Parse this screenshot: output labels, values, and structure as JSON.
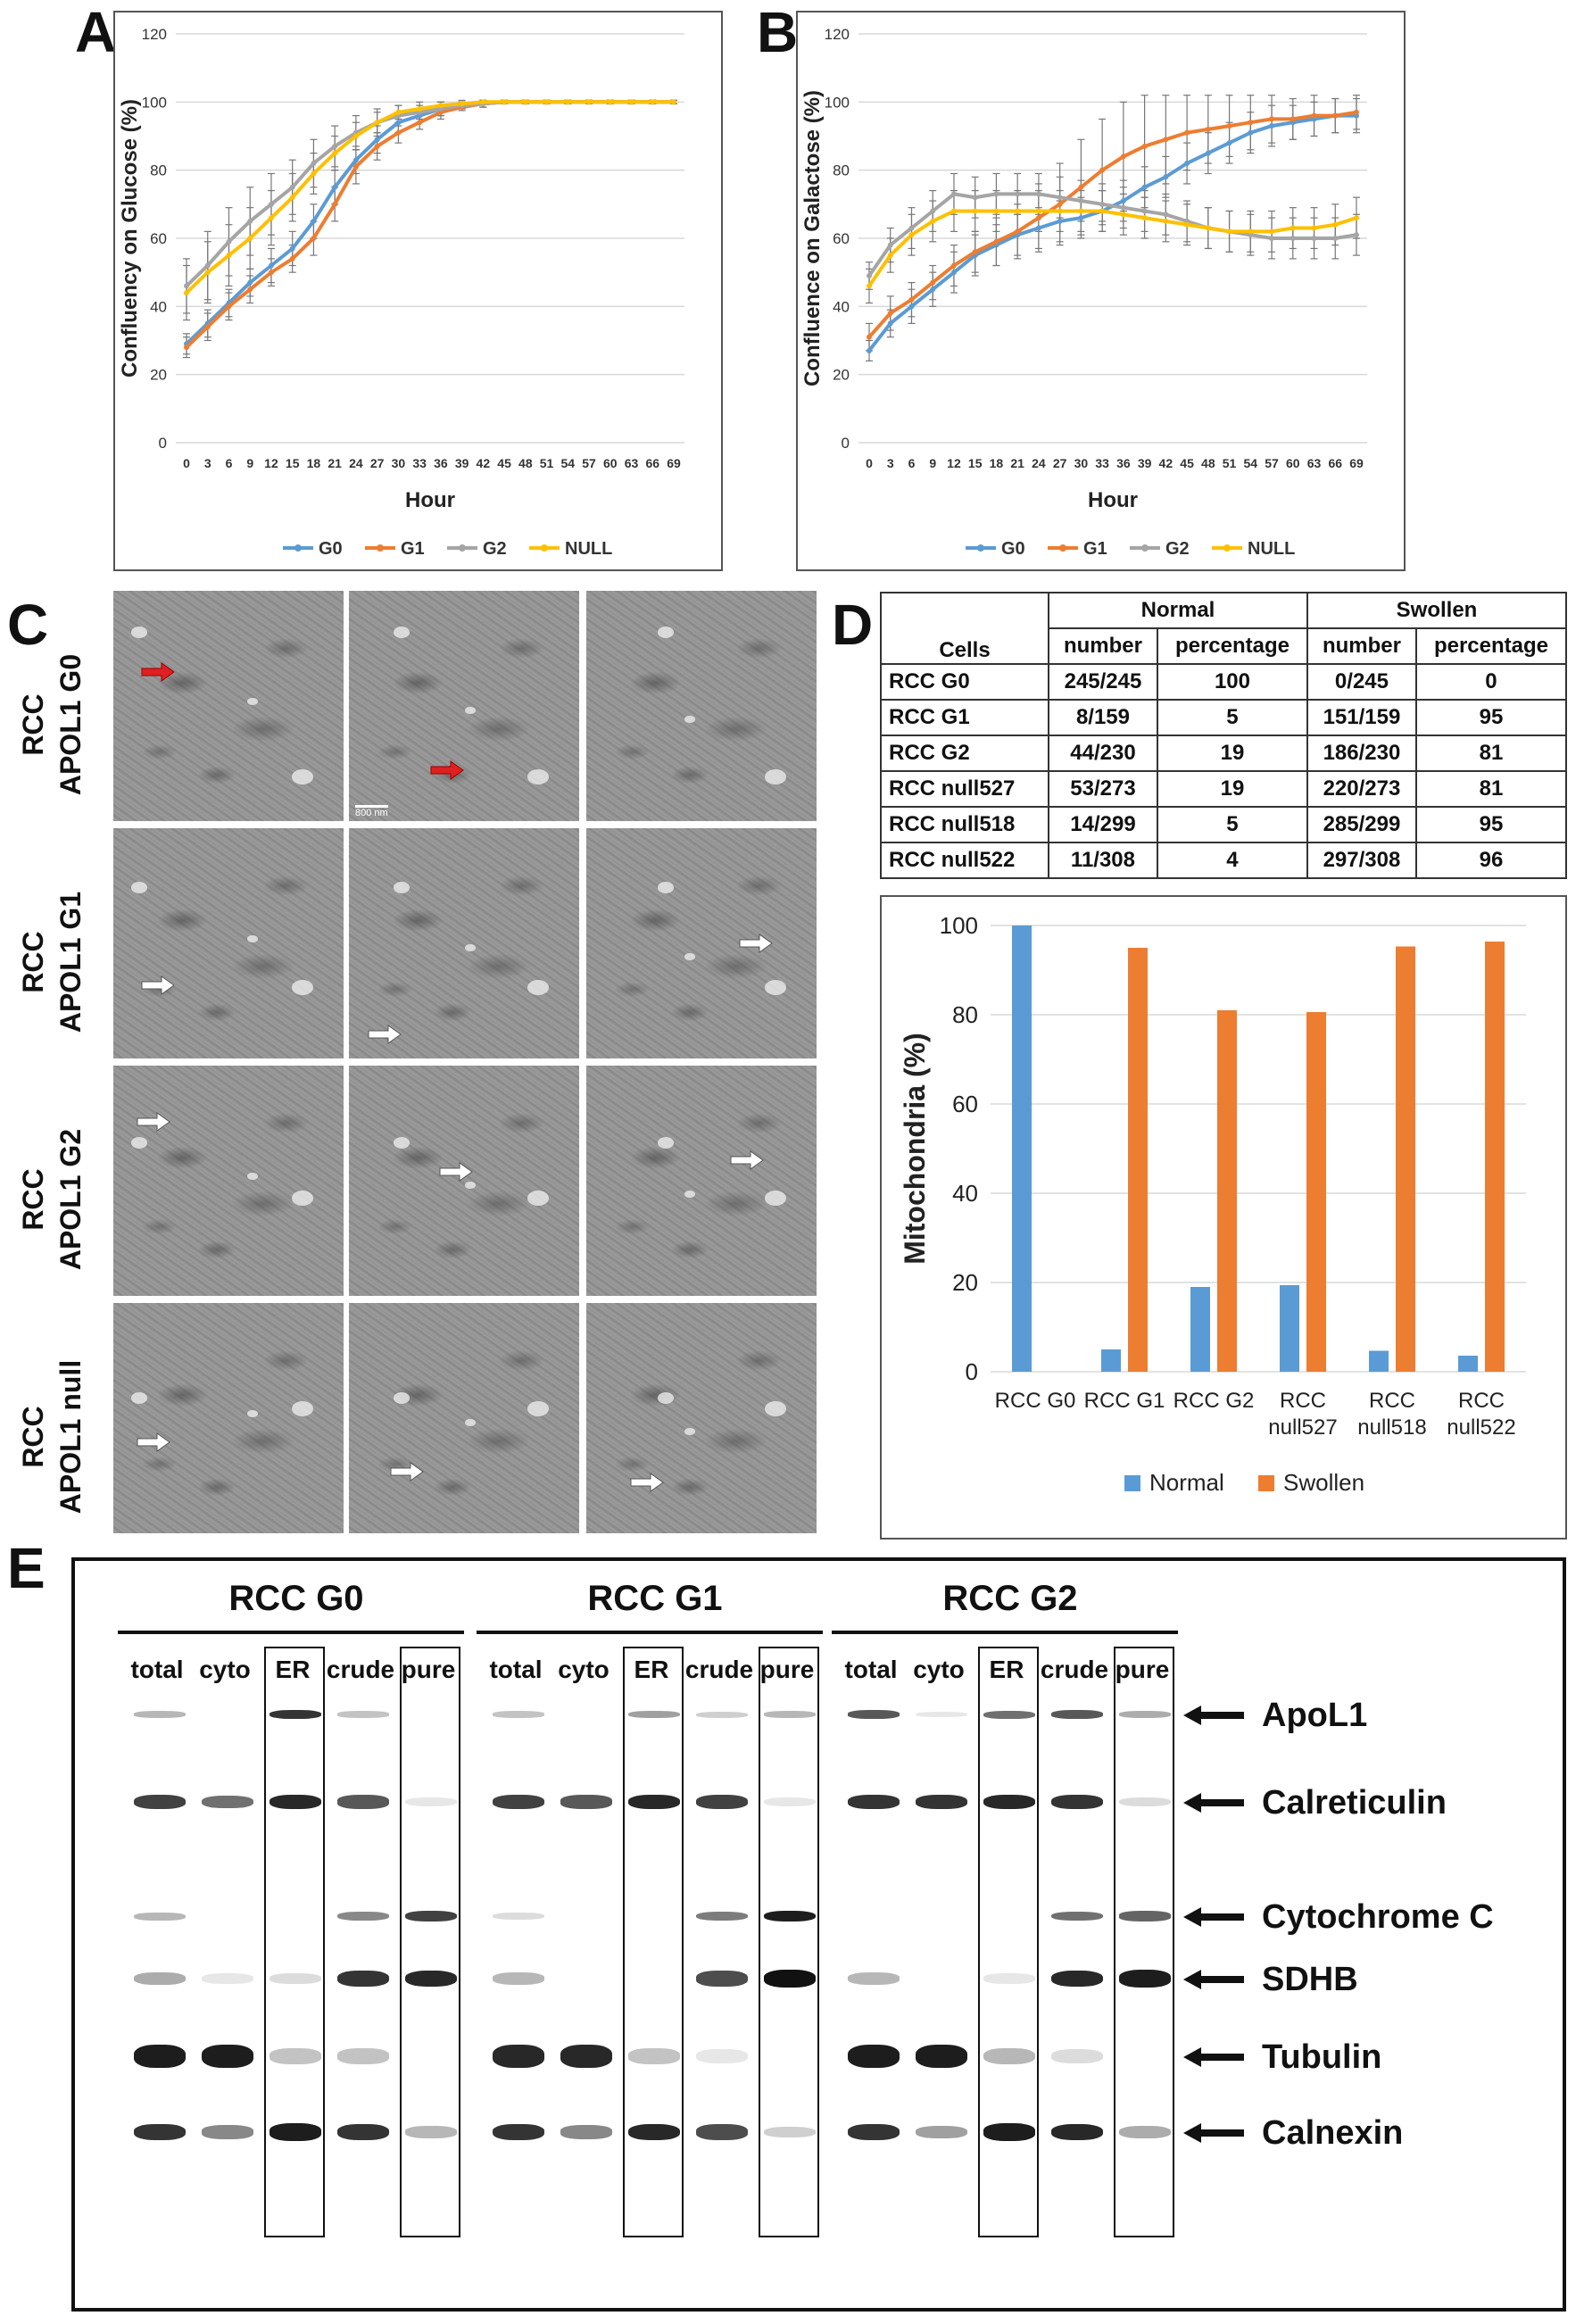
{
  "panels": {
    "a": "A",
    "b": "B",
    "c": "C",
    "d": "D",
    "e": "E"
  },
  "chart_data": [
    {
      "id": "A",
      "type": "line",
      "ylabel": "Confluency on Glucose (%)",
      "xlabel": "Hour",
      "ylim": [
        0,
        120
      ],
      "yticks": [
        0,
        20,
        40,
        60,
        80,
        100,
        120
      ],
      "x": [
        0,
        3,
        6,
        9,
        12,
        15,
        18,
        21,
        24,
        27,
        30,
        33,
        36,
        39,
        42,
        45,
        48,
        51,
        54,
        57,
        60,
        63,
        66,
        69
      ],
      "series": [
        {
          "name": "G0",
          "color": "#5b9bd5",
          "values": [
            29,
            35,
            41,
            47,
            52,
            57,
            65,
            75,
            83,
            89,
            94,
            96,
            98,
            99,
            99.5,
            100,
            100,
            100,
            100,
            100,
            100,
            100,
            100,
            100
          ],
          "err": [
            3,
            4,
            4,
            4,
            5,
            5,
            5,
            5,
            4,
            4,
            3,
            2,
            2,
            1,
            1,
            0.5,
            0.5,
            0.5,
            0.5,
            0.5,
            0.5,
            0.5,
            0.5,
            0.5
          ]
        },
        {
          "name": "G1",
          "color": "#ed7d31",
          "values": [
            28,
            34,
            40,
            45,
            50,
            54,
            60,
            70,
            81,
            87,
            91,
            94,
            97,
            98.5,
            99.5,
            100,
            100,
            100,
            100,
            100,
            100,
            100,
            100,
            100
          ],
          "err": [
            3,
            4,
            4,
            4,
            4,
            4,
            5,
            5,
            5,
            4,
            3,
            2,
            2,
            1,
            1,
            0.5,
            0.5,
            0.5,
            0.5,
            0.5,
            0.5,
            0.5,
            0.5,
            0.5
          ]
        },
        {
          "name": "G2",
          "color": "#a5a5a5",
          "values": [
            46,
            52,
            59,
            65,
            70,
            75,
            82,
            87,
            91,
            94,
            96,
            97,
            98,
            99,
            99.5,
            100,
            100,
            100,
            100,
            100,
            100,
            100,
            100,
            100
          ],
          "err": [
            8,
            10,
            10,
            10,
            9,
            8,
            7,
            6,
            5,
            4,
            3,
            2,
            2,
            1,
            1,
            0.5,
            0.5,
            0.5,
            0.5,
            0.5,
            0.5,
            0.5,
            0.5,
            0.5
          ]
        },
        {
          "name": "NULL",
          "color": "#ffc000",
          "values": [
            44,
            50,
            55,
            60,
            66,
            72,
            79,
            85,
            90,
            94,
            97,
            98,
            99,
            99.5,
            100,
            100,
            100,
            100,
            100,
            100,
            100,
            100,
            100,
            100
          ],
          "err": [
            8,
            9,
            9,
            9,
            8,
            7,
            6,
            5,
            4,
            3,
            2,
            2,
            1,
            1,
            0.5,
            0.5,
            0.5,
            0.5,
            0.5,
            0.5,
            0.5,
            0.5,
            0.5,
            0.5
          ]
        }
      ]
    },
    {
      "id": "B",
      "type": "line",
      "ylabel": "Confluence on Galactose (%)",
      "xlabel": "Hour",
      "ylim": [
        0,
        120
      ],
      "yticks": [
        0,
        20,
        40,
        60,
        80,
        100,
        120
      ],
      "x": [
        0,
        3,
        6,
        9,
        12,
        15,
        18,
        21,
        24,
        27,
        30,
        33,
        36,
        39,
        42,
        45,
        48,
        51,
        54,
        57,
        60,
        63,
        66,
        69
      ],
      "series": [
        {
          "name": "G0",
          "color": "#5b9bd5",
          "values": [
            27,
            35,
            40,
            45,
            50,
            55,
            58,
            61,
            63,
            65,
            66,
            68,
            71,
            75,
            78,
            82,
            85,
            88,
            91,
            93,
            94,
            95,
            96,
            96
          ],
          "err": [
            3,
            4,
            5,
            5,
            6,
            6,
            6,
            6,
            6,
            6,
            6,
            6,
            6,
            6,
            6,
            6,
            6,
            6,
            6,
            6,
            5,
            5,
            5,
            5
          ]
        },
        {
          "name": "G1",
          "color": "#ed7d31",
          "values": [
            31,
            38,
            42,
            47,
            52,
            56,
            59,
            62,
            66,
            70,
            75,
            80,
            84,
            87,
            89,
            91,
            92,
            93,
            94,
            95,
            95,
            96,
            96,
            97
          ],
          "err": [
            4,
            5,
            5,
            5,
            6,
            6,
            7,
            8,
            10,
            12,
            14,
            15,
            16,
            15,
            13,
            11,
            10,
            9,
            8,
            7,
            6,
            6,
            5,
            5
          ]
        },
        {
          "name": "G2",
          "color": "#a5a5a5",
          "values": [
            49,
            58,
            63,
            68,
            73,
            72,
            73,
            73,
            73,
            72,
            71,
            70,
            69,
            68,
            67,
            65,
            63,
            62,
            61,
            60,
            60,
            60,
            60,
            61
          ],
          "err": [
            4,
            5,
            6,
            6,
            6,
            6,
            6,
            6,
            6,
            6,
            6,
            6,
            6,
            6,
            6,
            6,
            6,
            6,
            6,
            6,
            6,
            6,
            6,
            6
          ]
        },
        {
          "name": "NULL",
          "color": "#ffc000",
          "values": [
            46,
            55,
            61,
            65,
            68,
            68,
            68,
            68,
            68,
            68,
            68,
            68,
            67,
            66,
            65,
            64,
            63,
            62,
            62,
            62,
            63,
            63,
            64,
            66
          ],
          "err": [
            5,
            5,
            6,
            6,
            6,
            6,
            6,
            6,
            6,
            6,
            6,
            6,
            6,
            6,
            6,
            6,
            6,
            6,
            6,
            6,
            6,
            6,
            6,
            6
          ]
        }
      ]
    },
    {
      "id": "D",
      "type": "bar",
      "ylabel": "Mitochondria (%)",
      "ylim": [
        0,
        100
      ],
      "yticks": [
        0,
        20,
        40,
        60,
        80,
        100
      ],
      "categories": [
        "RCC G0",
        "RCC G1",
        "RCC G2",
        "RCC null527",
        "RCC null518",
        "RCC null522"
      ],
      "category_lines": [
        [
          "RCC G0"
        ],
        [
          "RCC G1"
        ],
        [
          "RCC G2"
        ],
        [
          "RCC",
          "null527"
        ],
        [
          "RCC",
          "null518"
        ],
        [
          "RCC",
          "null522"
        ]
      ],
      "series": [
        {
          "name": "Normal",
          "color": "#5b9bd5",
          "values": [
            100,
            5,
            19,
            19.4,
            4.7,
            3.6
          ]
        },
        {
          "name": "Swollen",
          "color": "#ed7d31",
          "values": [
            0,
            95,
            81,
            80.6,
            95.3,
            96.4
          ]
        }
      ]
    },
    {
      "id": "D-table",
      "type": "table",
      "headers": {
        "cells": "Cells",
        "normal": "Normal",
        "swollen": "Swollen",
        "number": "number",
        "percentage": "percentage"
      },
      "rows": [
        {
          "cells": "RCC G0",
          "normal_number": "245/245",
          "normal_pct": "100",
          "swollen_number": "0/245",
          "swollen_pct": "0"
        },
        {
          "cells": "RCC G1",
          "normal_number": "8/159",
          "normal_pct": "5",
          "swollen_number": "151/159",
          "swollen_pct": "95"
        },
        {
          "cells": "RCC G2",
          "normal_number": "44/230",
          "normal_pct": "19",
          "swollen_number": "186/230",
          "swollen_pct": "81"
        },
        {
          "cells": "RCC null527",
          "normal_number": "53/273",
          "normal_pct": "19",
          "swollen_number": "220/273",
          "swollen_pct": "81"
        },
        {
          "cells": "RCC null518",
          "normal_number": "14/299",
          "normal_pct": "5",
          "swollen_number": "285/299",
          "swollen_pct": "95"
        },
        {
          "cells": "RCC null522",
          "normal_number": "11/308",
          "normal_pct": "4",
          "swollen_number": "297/308",
          "swollen_pct": "96"
        }
      ]
    }
  ],
  "em_panel": {
    "rows": [
      {
        "label": "RCC\nAPOL1 G0"
      },
      {
        "label": "RCC\nAPOL1 G1"
      },
      {
        "label": "RCC\nAPOL1 G2"
      },
      {
        "label": "RCC\nAPOL1 null"
      }
    ],
    "scale_bar": "800 nm"
  },
  "blot": {
    "groups": [
      "RCC G0",
      "RCC G1",
      "RCC G2"
    ],
    "lanes": [
      "total",
      "cyto",
      "ER",
      "crude",
      "pure"
    ],
    "proteins": [
      "ApoL1",
      "Calreticulin",
      "Cytochrome C",
      "SDHB",
      "Tubulin",
      "Calnexin"
    ],
    "intensity": {
      "ApoL1": [
        [
          0.3,
          0,
          0.85,
          0.25,
          0
        ],
        [
          0.25,
          0,
          0.4,
          0.2,
          0.3
        ],
        [
          0.7,
          0.1,
          0.6,
          0.7,
          0.35
        ]
      ],
      "Calreticulin": [
        [
          0.8,
          0.6,
          0.9,
          0.7,
          0.1
        ],
        [
          0.8,
          0.7,
          0.9,
          0.8,
          0.1
        ],
        [
          0.85,
          0.85,
          0.9,
          0.85,
          0.15
        ]
      ],
      "Cytochrome C": [
        [
          0.3,
          0,
          0,
          0.5,
          0.8
        ],
        [
          0.15,
          0,
          0,
          0.55,
          0.95
        ],
        [
          0,
          0,
          0,
          0.6,
          0.65
        ]
      ],
      "SDHB": [
        [
          0.35,
          0.1,
          0.15,
          0.85,
          0.9
        ],
        [
          0.3,
          0,
          0,
          0.75,
          1.0
        ],
        [
          0.3,
          0,
          0.1,
          0.9,
          0.95
        ]
      ],
      "Tubulin": [
        [
          0.95,
          0.95,
          0.25,
          0.25,
          0
        ],
        [
          0.9,
          0.9,
          0.25,
          0.1,
          0
        ],
        [
          0.95,
          0.95,
          0.3,
          0.15,
          0
        ]
      ],
      "Calnexin": [
        [
          0.85,
          0.5,
          0.95,
          0.85,
          0.3
        ],
        [
          0.85,
          0.5,
          0.9,
          0.75,
          0.2
        ],
        [
          0.85,
          0.4,
          0.95,
          0.9,
          0.35
        ]
      ]
    }
  }
}
